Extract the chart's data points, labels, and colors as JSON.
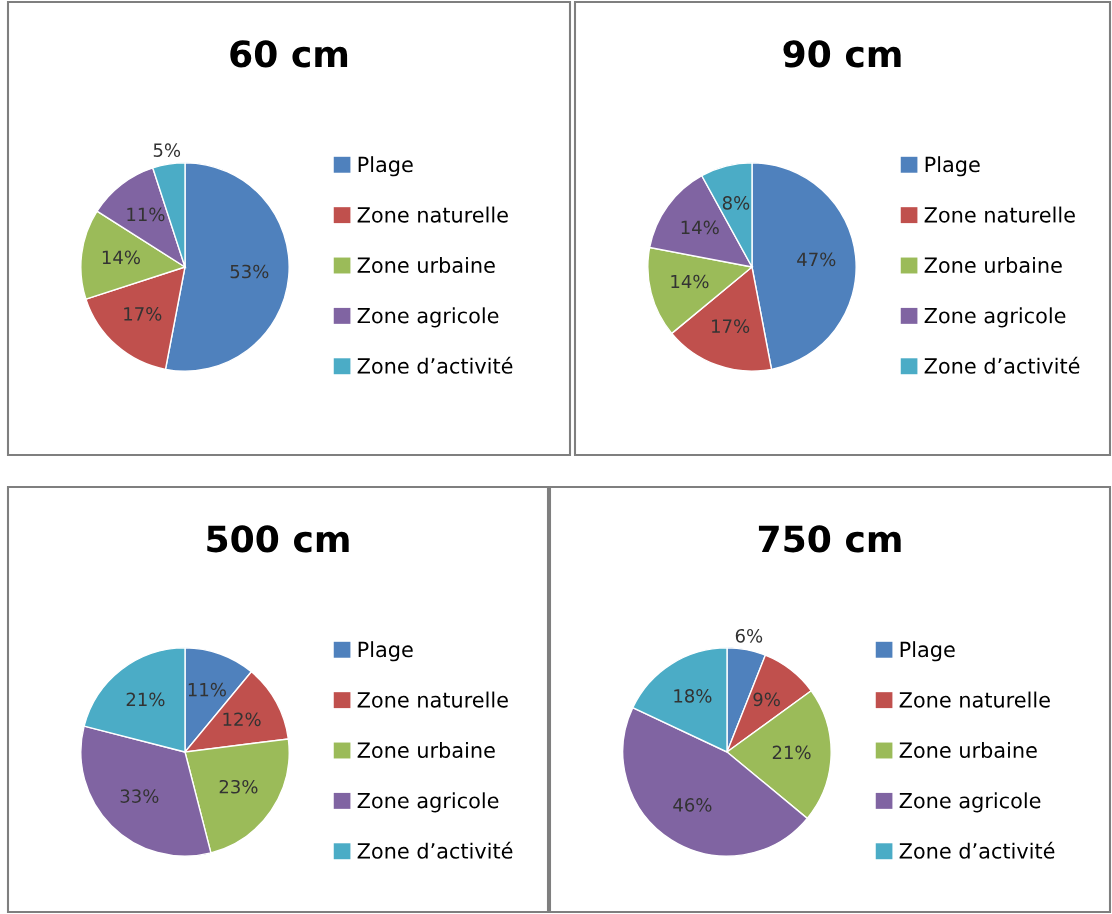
{
  "chart_data": [
    {
      "type": "pie",
      "title": "60 cm",
      "categories": [
        "Plage",
        "Zone naturelle",
        "Zone urbaine",
        "Zone agricole",
        "Zone d’activité"
      ],
      "values": [
        53,
        17,
        14,
        11,
        5
      ],
      "value_labels": [
        "53%",
        "17%",
        "14%",
        "11%",
        "5%"
      ],
      "colors": [
        "#4f81bd",
        "#c0504d",
        "#9bbb59",
        "#8064a2",
        "#4bacc6"
      ],
      "legend": "right"
    },
    {
      "type": "pie",
      "title": "90 cm",
      "categories": [
        "Plage",
        "Zone naturelle",
        "Zone urbaine",
        "Zone agricole",
        "Zone d’activité"
      ],
      "values": [
        47,
        17,
        14,
        14,
        8
      ],
      "value_labels": [
        "47%",
        "17%",
        "14%",
        "14%",
        "8%"
      ],
      "colors": [
        "#4f81bd",
        "#c0504d",
        "#9bbb59",
        "#8064a2",
        "#4bacc6"
      ],
      "legend": "right"
    },
    {
      "type": "pie",
      "title": "500 cm",
      "categories": [
        "Plage",
        "Zone naturelle",
        "Zone urbaine",
        "Zone agricole",
        "Zone d’activité"
      ],
      "values": [
        11,
        12,
        23,
        33,
        21
      ],
      "value_labels": [
        "11%",
        "12%",
        "23%",
        "33%",
        "21%"
      ],
      "colors": [
        "#4f81bd",
        "#c0504d",
        "#9bbb59",
        "#8064a2",
        "#4bacc6"
      ],
      "legend": "right"
    },
    {
      "type": "pie",
      "title": "750 cm",
      "categories": [
        "Plage",
        "Zone naturelle",
        "Zone urbaine",
        "Zone agricole",
        "Zone d’activité"
      ],
      "values": [
        6,
        9,
        21,
        46,
        18
      ],
      "value_labels": [
        "6%",
        "9%",
        "21%",
        "46%",
        "18%"
      ],
      "colors": [
        "#4f81bd",
        "#c0504d",
        "#9bbb59",
        "#8064a2",
        "#4bacc6"
      ],
      "legend": "right"
    }
  ]
}
